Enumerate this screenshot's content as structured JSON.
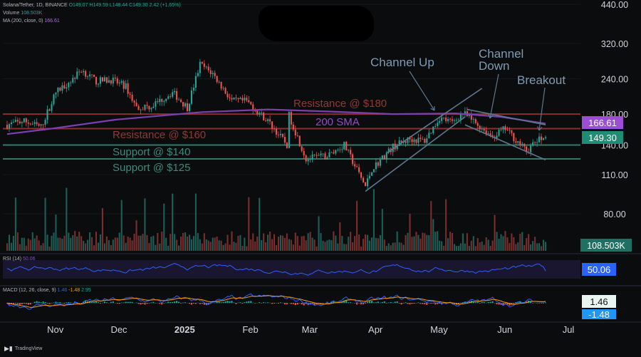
{
  "header": {
    "symbol": "Solana/Tether, 1D, BINANCE",
    "ohlc": "O149.07 H149.59 L148.44 C149.30 2.42 (+1.65%)",
    "volume_label": "Volume",
    "volume_value": "108.503K",
    "ma_label": "MA (200, close, 0)",
    "ma_value": "166.61"
  },
  "rsi_label": "RSI (14)",
  "rsi_value_small": "50.06",
  "macd_label": "MACD (12, 26, close, 9)",
  "macd_values": [
    "1.46",
    "-1.48",
    "2.95"
  ],
  "brand": "TradingView",
  "colors": {
    "bull": "#26a69a",
    "bear": "#ef5350",
    "resistance": "#8b2f2f",
    "support": "#2f7a6a",
    "sma": "#7b3fb2",
    "channel": "#5d7890",
    "rsi": "#2962ff",
    "macd_line": "#2962ff",
    "signal_line": "#ff9800"
  },
  "chart_data": {
    "type": "candlestick",
    "title": "Solana/Tether, 1D, BINANCE",
    "scale": "log",
    "ylim": [
      55,
      440
    ],
    "price_ticks": [
      440,
      320,
      240,
      180,
      140,
      110,
      80
    ],
    "x_labels": [
      "Nov",
      "Dec",
      "2025",
      "Feb",
      "Mar",
      "Apr",
      "May",
      "Jun",
      "Jul"
    ],
    "x_label_dates": [
      "2024-11-01",
      "2024-12-01",
      "2025-01-01",
      "2025-02-01",
      "2025-03-01",
      "2025-04-01",
      "2025-05-01",
      "2025-06-01",
      "2025-07-01"
    ],
    "date_range": [
      "2024-10-20",
      "2025-07-01"
    ],
    "close_path": [
      [
        "2024-10-20",
        165
      ],
      [
        "2024-10-28",
        170
      ],
      [
        "2024-11-05",
        162
      ],
      [
        "2024-11-12",
        215
      ],
      [
        "2024-11-20",
        240
      ],
      [
        "2024-11-24",
        258
      ],
      [
        "2024-12-01",
        235
      ],
      [
        "2024-12-08",
        238
      ],
      [
        "2024-12-15",
        225
      ],
      [
        "2024-12-20",
        190
      ],
      [
        "2024-12-27",
        192
      ],
      [
        "2025-01-06",
        215
      ],
      [
        "2025-01-13",
        190
      ],
      [
        "2025-01-19",
        270
      ],
      [
        "2025-01-25",
        250
      ],
      [
        "2025-02-03",
        200
      ],
      [
        "2025-02-10",
        200
      ],
      [
        "2025-02-20",
        170
      ],
      [
        "2025-03-01",
        140
      ],
      [
        "2025-03-02",
        178
      ],
      [
        "2025-03-10",
        125
      ],
      [
        "2025-03-20",
        128
      ],
      [
        "2025-03-28",
        140
      ],
      [
        "2025-04-07",
        100
      ],
      [
        "2025-04-10",
        115
      ],
      [
        "2025-04-20",
        138
      ],
      [
        "2025-04-28",
        147
      ],
      [
        "2025-05-05",
        145
      ],
      [
        "2025-05-12",
        175
      ],
      [
        "2025-05-18",
        168
      ],
      [
        "2025-05-23",
        182
      ],
      [
        "2025-05-30",
        165
      ],
      [
        "2025-06-06",
        150
      ],
      [
        "2025-06-12",
        160
      ],
      [
        "2025-06-22",
        133
      ],
      [
        "2025-06-27",
        145
      ],
      [
        "2025-07-01",
        149.3
      ]
    ],
    "sma200_path": [
      [
        "2024-10-20",
        153
      ],
      [
        "2024-11-10",
        160
      ],
      [
        "2024-12-10",
        172
      ],
      [
        "2025-01-20",
        183
      ],
      [
        "2025-02-20",
        187
      ],
      [
        "2025-03-20",
        184
      ],
      [
        "2025-04-20",
        180
      ],
      [
        "2025-05-20",
        181
      ],
      [
        "2025-06-10",
        176
      ],
      [
        "2025-07-01",
        166.61
      ]
    ],
    "last_price": 149.3,
    "sma200_value": 166.61,
    "levels": [
      {
        "label": "Resistance @ $180",
        "value": 180,
        "kind": "resistance"
      },
      {
        "label": "Resistance @ $160",
        "value": 160,
        "kind": "resistance"
      },
      {
        "label": "Support @ $140",
        "value": 140,
        "kind": "support"
      },
      {
        "label": "Support @ $125",
        "value": 125,
        "kind": "support"
      }
    ],
    "annotations": {
      "sma_label": "200 SMA",
      "channel_up": "Channel Up",
      "channel_down_1": "Channel",
      "channel_down_2": "Down",
      "breakout": "Breakout"
    },
    "channel_up_lines": [
      [
        [
          "2025-04-07",
          96
        ],
        [
          "2025-05-24",
          176
        ]
      ],
      [
        [
          "2025-04-17",
          131
        ],
        [
          "2025-06-01",
          222
        ]
      ]
    ],
    "channel_down_lines": [
      [
        [
          "2025-05-25",
          187
        ],
        [
          "2025-07-01",
          165
        ]
      ],
      [
        [
          "2025-05-24",
          165
        ],
        [
          "2025-07-01",
          124
        ]
      ]
    ],
    "volume_value": "108.503K",
    "rsi_period": 14,
    "rsi_value": 50.06,
    "rsi_ylim": [
      20,
      85
    ],
    "macd_value": 1.46,
    "macd_signal": -1.48,
    "macd_hist": 2.95
  }
}
